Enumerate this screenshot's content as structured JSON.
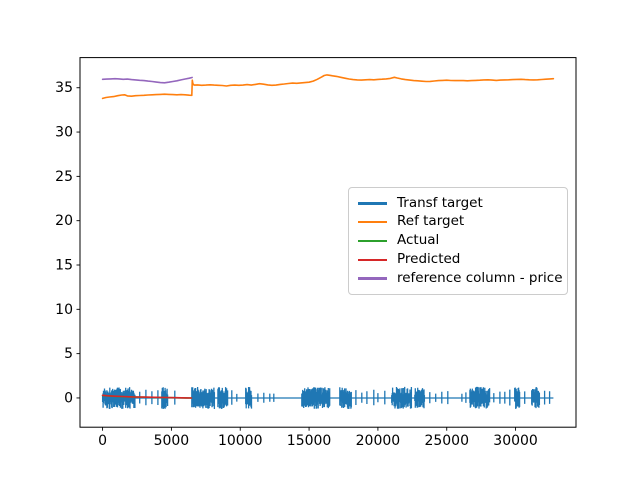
{
  "figure": {
    "background": "#ffffff",
    "frame_color": "#000000"
  },
  "chart_data": {
    "type": "line",
    "title": "",
    "xlabel": "",
    "ylabel": "",
    "grid": false,
    "legend_position": "center-right",
    "legend_border_color": "#cccccc",
    "xlim": [
      -1640,
      34390
    ],
    "ylim": [
      -3.3,
      38.4
    ],
    "x_ticks": [
      0,
      5000,
      10000,
      15000,
      20000,
      25000,
      30000
    ],
    "y_ticks": [
      0,
      5,
      10,
      15,
      20,
      25,
      30,
      35
    ],
    "series": [
      {
        "name": "Transf target",
        "color": "#1f77b4",
        "render": "noise",
        "baseline": 0,
        "x_range": [
          0,
          32750
        ],
        "noise_amp_min": 0.3,
        "noise_amp_max": 1.25,
        "burst_regions": [
          [
            0,
            2350
          ],
          [
            4300,
            4750
          ],
          [
            6480,
            8150
          ],
          [
            8380,
            9100
          ],
          [
            10400,
            10840
          ],
          [
            14470,
            16500
          ],
          [
            17230,
            18100
          ],
          [
            21000,
            22460
          ],
          [
            22680,
            23400
          ],
          [
            26680,
            28130
          ],
          [
            29940,
            30300
          ],
          [
            31170,
            31750
          ]
        ],
        "spike_xs": [
          2700,
          3150,
          3580,
          4020,
          5250,
          9390,
          9750,
          11280,
          11710,
          12150,
          12440,
          18400,
          18830,
          19200,
          19700,
          20000,
          20500,
          23770,
          24200,
          24640,
          25080,
          26100,
          26390,
          28420,
          28860,
          29220,
          29580,
          30660,
          32110,
          32470
        ]
      },
      {
        "name": "Ref target",
        "color": "#ff7f0e",
        "render": "line",
        "points": [
          [
            0,
            33.8
          ],
          [
            250,
            33.9
          ],
          [
            500,
            33.95
          ],
          [
            800,
            34.0
          ],
          [
            1100,
            34.1
          ],
          [
            1400,
            34.18
          ],
          [
            1600,
            34.2
          ],
          [
            1800,
            34.08
          ],
          [
            2100,
            34.05
          ],
          [
            2400,
            34.1
          ],
          [
            2700,
            34.12
          ],
          [
            3000,
            34.15
          ],
          [
            3300,
            34.18
          ],
          [
            3600,
            34.2
          ],
          [
            3900,
            34.22
          ],
          [
            4200,
            34.25
          ],
          [
            4500,
            34.27
          ],
          [
            4800,
            34.25
          ],
          [
            5100,
            34.22
          ],
          [
            5400,
            34.2
          ],
          [
            5700,
            34.22
          ],
          [
            6000,
            34.2
          ],
          [
            6300,
            34.16
          ],
          [
            6480,
            34.15
          ],
          [
            6520,
            35.85
          ],
          [
            6560,
            35.45
          ],
          [
            6650,
            35.3
          ],
          [
            6900,
            35.32
          ],
          [
            7200,
            35.28
          ],
          [
            7500,
            35.3
          ],
          [
            7800,
            35.33
          ],
          [
            8100,
            35.3
          ],
          [
            8400,
            35.28
          ],
          [
            8700,
            35.25
          ],
          [
            9000,
            35.2
          ],
          [
            9300,
            35.28
          ],
          [
            9600,
            35.3
          ],
          [
            9900,
            35.28
          ],
          [
            10200,
            35.3
          ],
          [
            10500,
            35.35
          ],
          [
            10800,
            35.3
          ],
          [
            11100,
            35.38
          ],
          [
            11400,
            35.45
          ],
          [
            11700,
            35.4
          ],
          [
            12000,
            35.32
          ],
          [
            12300,
            35.28
          ],
          [
            12600,
            35.3
          ],
          [
            12900,
            35.38
          ],
          [
            13200,
            35.42
          ],
          [
            13500,
            35.48
          ],
          [
            13800,
            35.52
          ],
          [
            14100,
            35.5
          ],
          [
            14400,
            35.55
          ],
          [
            14700,
            35.58
          ],
          [
            15000,
            35.62
          ],
          [
            15300,
            35.75
          ],
          [
            15600,
            35.95
          ],
          [
            15900,
            36.2
          ],
          [
            16100,
            36.38
          ],
          [
            16300,
            36.45
          ],
          [
            16500,
            36.4
          ],
          [
            16700,
            36.35
          ],
          [
            17000,
            36.28
          ],
          [
            17300,
            36.18
          ],
          [
            17600,
            36.08
          ],
          [
            17900,
            35.98
          ],
          [
            18200,
            35.92
          ],
          [
            18500,
            35.88
          ],
          [
            18800,
            35.86
          ],
          [
            19100,
            35.9
          ],
          [
            19400,
            35.92
          ],
          [
            19700,
            35.9
          ],
          [
            20000,
            35.94
          ],
          [
            20300,
            35.96
          ],
          [
            20600,
            36.0
          ],
          [
            20900,
            36.05
          ],
          [
            21200,
            36.18
          ],
          [
            21400,
            36.1
          ],
          [
            21700,
            36.0
          ],
          [
            22000,
            35.92
          ],
          [
            22300,
            35.86
          ],
          [
            22600,
            35.8
          ],
          [
            22900,
            35.78
          ],
          [
            23200,
            35.74
          ],
          [
            23500,
            35.7
          ],
          [
            23800,
            35.72
          ],
          [
            24100,
            35.76
          ],
          [
            24400,
            35.8
          ],
          [
            24700,
            35.83
          ],
          [
            25000,
            35.85
          ],
          [
            25300,
            35.82
          ],
          [
            25600,
            35.8
          ],
          [
            25900,
            35.82
          ],
          [
            26200,
            35.8
          ],
          [
            26500,
            35.78
          ],
          [
            26800,
            35.8
          ],
          [
            27100,
            35.83
          ],
          [
            27400,
            35.85
          ],
          [
            27700,
            35.88
          ],
          [
            28000,
            35.9
          ],
          [
            28300,
            35.86
          ],
          [
            28600,
            35.83
          ],
          [
            28900,
            35.86
          ],
          [
            29200,
            35.88
          ],
          [
            29500,
            35.9
          ],
          [
            29800,
            35.92
          ],
          [
            30100,
            35.94
          ],
          [
            30400,
            35.95
          ],
          [
            30700,
            35.92
          ],
          [
            31000,
            35.9
          ],
          [
            31300,
            35.88
          ],
          [
            31600,
            35.9
          ],
          [
            31900,
            35.93
          ],
          [
            32200,
            35.96
          ],
          [
            32500,
            36.0
          ],
          [
            32750,
            36.02
          ]
        ]
      },
      {
        "name": "Actual",
        "color": "#2ca02c",
        "render": "line",
        "points": [
          [
            0,
            0.26
          ],
          [
            1000,
            0.18
          ],
          [
            2000,
            0.12
          ],
          [
            3000,
            0.09
          ],
          [
            4000,
            0.06
          ],
          [
            5000,
            0.03
          ],
          [
            6000,
            0.01
          ],
          [
            6450,
            0.0
          ]
        ]
      },
      {
        "name": "Predicted",
        "color": "#d62728",
        "render": "line",
        "points": [
          [
            0,
            0.3
          ],
          [
            400,
            0.24
          ],
          [
            900,
            0.2
          ],
          [
            1500,
            0.16
          ],
          [
            2200,
            0.12
          ],
          [
            3000,
            0.1
          ],
          [
            3800,
            0.07
          ],
          [
            4600,
            0.05
          ],
          [
            5400,
            0.03
          ],
          [
            6100,
            0.01
          ],
          [
            6450,
            0.0
          ]
        ]
      },
      {
        "name": "reference column - price",
        "color": "#9467bd",
        "render": "line",
        "points": [
          [
            0,
            35.95
          ],
          [
            300,
            35.97
          ],
          [
            600,
            36.0
          ],
          [
            900,
            36.02
          ],
          [
            1200,
            36.0
          ],
          [
            1500,
            35.95
          ],
          [
            1800,
            35.97
          ],
          [
            2100,
            35.92
          ],
          [
            2400,
            35.88
          ],
          [
            2700,
            35.84
          ],
          [
            3000,
            35.8
          ],
          [
            3300,
            35.75
          ],
          [
            3600,
            35.7
          ],
          [
            3900,
            35.64
          ],
          [
            4200,
            35.58
          ],
          [
            4500,
            35.56
          ],
          [
            4800,
            35.62
          ],
          [
            5100,
            35.7
          ],
          [
            5400,
            35.78
          ],
          [
            5700,
            35.88
          ],
          [
            6000,
            35.98
          ],
          [
            6300,
            36.08
          ],
          [
            6500,
            36.15
          ]
        ]
      }
    ]
  }
}
